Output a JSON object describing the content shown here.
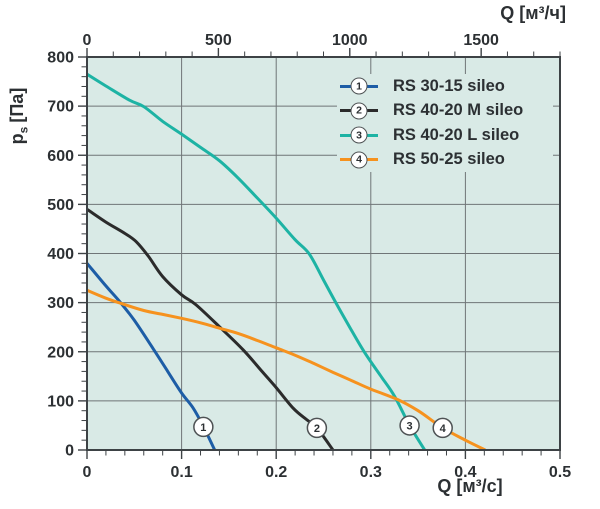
{
  "colors": {
    "page_bg": "#ffffff",
    "plot_bg": "#d9eae6",
    "grid": "#6f7577",
    "frame": "#3d4245",
    "text": "#2c3033",
    "marker_fill": "#ffffff",
    "marker_stroke": "#4e5254"
  },
  "chart_data": {
    "type": "line",
    "title": "",
    "legend_position": "top-right-inside",
    "grid": "major-on",
    "y_axis": {
      "label_main": "p",
      "label_sub": "s",
      "label_unit": "[Па]",
      "min": 0,
      "max": 800,
      "major_step": 100,
      "minor_step": 20,
      "tick_labels": [
        "0",
        "100",
        "200",
        "300",
        "400",
        "500",
        "600",
        "700",
        "800"
      ]
    },
    "x_axis_bottom": {
      "label": "Q [м³/с]",
      "min": 0,
      "max": 0.5,
      "major_step": 0.1,
      "minor_step": 0.02,
      "tick_labels": [
        "0",
        "0.1",
        "0.2",
        "0.3",
        "0.4",
        "0.5"
      ]
    },
    "x_axis_top": {
      "label": "Q [м³/ч]",
      "min": 0,
      "max": 1800,
      "major_step": 500,
      "minor_step": 100,
      "major_ticks": [
        0,
        500,
        1000,
        1500
      ],
      "tick_labels": [
        "0",
        "500",
        "1000",
        "1500"
      ]
    },
    "series": [
      {
        "number": "1",
        "name": "RS 30-15 sileo",
        "color": "#1d5da6",
        "marker": {
          "q": 0.123,
          "p": 47
        },
        "points": [
          [
            0,
            380
          ],
          [
            0.02,
            334
          ],
          [
            0.035,
            301
          ],
          [
            0.05,
            264
          ],
          [
            0.07,
            206
          ],
          [
            0.085,
            161
          ],
          [
            0.1,
            116
          ],
          [
            0.112,
            86
          ],
          [
            0.123,
            48
          ],
          [
            0.135,
            0
          ]
        ]
      },
      {
        "number": "2",
        "name": "RS 40-20 M sileo",
        "color": "#2b2b2b",
        "marker": {
          "q": 0.243,
          "p": 45
        },
        "points": [
          [
            0,
            490
          ],
          [
            0.02,
            464
          ],
          [
            0.04,
            441
          ],
          [
            0.052,
            424
          ],
          [
            0.065,
            394
          ],
          [
            0.08,
            353
          ],
          [
            0.1,
            316
          ],
          [
            0.115,
            296
          ],
          [
            0.14,
            251
          ],
          [
            0.165,
            204
          ],
          [
            0.185,
            160
          ],
          [
            0.2,
            127
          ],
          [
            0.218,
            85
          ],
          [
            0.232,
            62
          ],
          [
            0.243,
            45
          ],
          [
            0.26,
            0
          ]
        ]
      },
      {
        "number": "3",
        "name": "RS 40-20 L sileo",
        "color": "#1db3a4",
        "marker": {
          "q": 0.341,
          "p": 50
        },
        "points": [
          [
            0,
            765
          ],
          [
            0.02,
            741
          ],
          [
            0.045,
            712
          ],
          [
            0.06,
            699
          ],
          [
            0.08,
            669
          ],
          [
            0.1,
            643
          ],
          [
            0.12,
            616
          ],
          [
            0.14,
            589
          ],
          [
            0.16,
            553
          ],
          [
            0.18,
            513
          ],
          [
            0.2,
            472
          ],
          [
            0.22,
            428
          ],
          [
            0.235,
            399
          ],
          [
            0.25,
            346
          ],
          [
            0.263,
            300
          ],
          [
            0.278,
            249
          ],
          [
            0.293,
            200
          ],
          [
            0.31,
            152
          ],
          [
            0.325,
            110
          ],
          [
            0.341,
            50
          ],
          [
            0.357,
            0
          ]
        ]
      },
      {
        "number": "4",
        "name": "RS 50-25 sileo",
        "color": "#f6921e",
        "marker": {
          "q": 0.376,
          "p": 45
        },
        "points": [
          [
            0,
            325
          ],
          [
            0.02,
            309
          ],
          [
            0.035,
            299
          ],
          [
            0.06,
            284
          ],
          [
            0.08,
            276
          ],
          [
            0.1,
            268
          ],
          [
            0.12,
            259
          ],
          [
            0.14,
            248
          ],
          [
            0.16,
            237
          ],
          [
            0.18,
            223
          ],
          [
            0.2,
            208
          ],
          [
            0.22,
            193
          ],
          [
            0.24,
            176
          ],
          [
            0.26,
            158
          ],
          [
            0.28,
            141
          ],
          [
            0.3,
            124
          ],
          [
            0.328,
            103
          ],
          [
            0.35,
            80
          ],
          [
            0.376,
            45
          ],
          [
            0.4,
            20
          ],
          [
            0.421,
            0
          ]
        ]
      }
    ]
  }
}
